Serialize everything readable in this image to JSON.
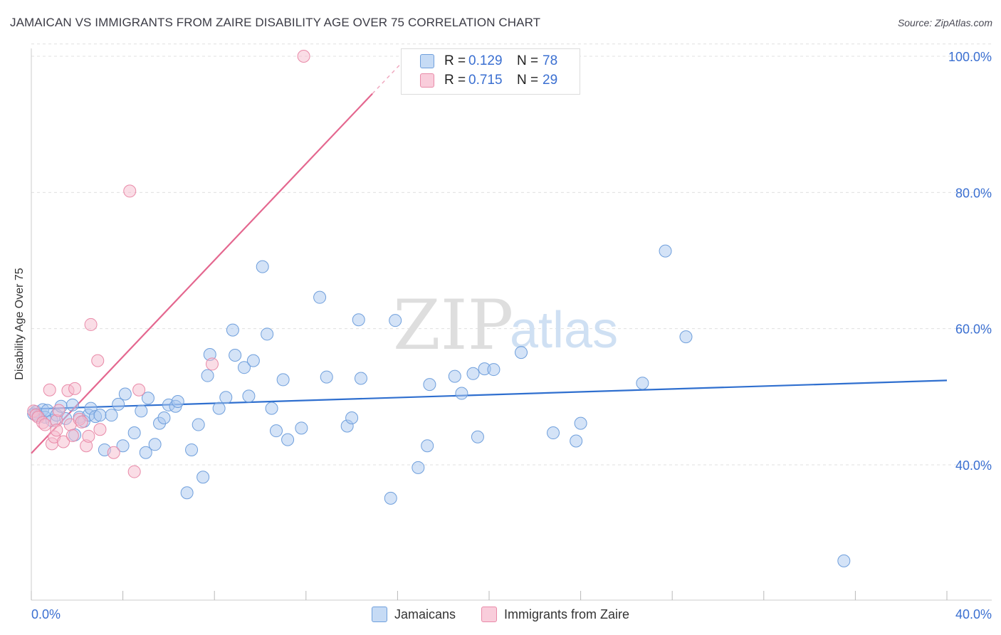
{
  "title": "JAMAICAN VS IMMIGRANTS FROM ZAIRE DISABILITY AGE OVER 75 CORRELATION CHART",
  "source": "Source: ZipAtlas.com",
  "watermark": {
    "zip": "ZIP",
    "atlas": "atlas"
  },
  "colors": {
    "blue_fill": "#a9c8f0",
    "blue_stroke": "#6f9fdc",
    "blue_line": "#2f6fcf",
    "pink_fill": "#f6bccd",
    "pink_stroke": "#e98aa8",
    "pink_line": "#e4678f",
    "tick_text": "#3a6fd1",
    "grid": "#e0e0e0"
  },
  "stats": {
    "series1": {
      "r_label": "R =",
      "r_value": "0.129",
      "n_label": "N =",
      "n_value": "78"
    },
    "series2": {
      "r_label": "R =",
      "r_value": "0.715",
      "n_label": "N =",
      "n_value": "29"
    }
  },
  "chart_data": {
    "type": "scatter",
    "title": "JAMAICAN VS IMMIGRANTS FROM ZAIRE DISABILITY AGE OVER 75 CORRELATION CHART",
    "xlabel": "",
    "ylabel": "Disability Age Over 75",
    "xlim": [
      0,
      40
    ],
    "ylim": [
      20,
      102
    ],
    "x_tick_labels": [
      "0.0%",
      "40.0%"
    ],
    "y_ticks": [
      40,
      60,
      80,
      100
    ],
    "y_tick_labels": [
      "40.0%",
      "60.0%",
      "80.0%",
      "100.0%"
    ],
    "grid": true,
    "legend": [
      "Jamaicans",
      "Immigrants from Zaire"
    ],
    "series": [
      {
        "name": "Jamaicans",
        "trend": {
          "x": [
            0,
            40
          ],
          "y": [
            48.2,
            52.4
          ]
        },
        "points": [
          [
            0.1,
            47.5
          ],
          [
            0.2,
            47.8
          ],
          [
            0.3,
            47.2
          ],
          [
            0.5,
            48.1
          ],
          [
            0.6,
            47.0
          ],
          [
            0.7,
            48.0
          ],
          [
            0.9,
            46.5
          ],
          [
            1.1,
            47.3
          ],
          [
            1.3,
            48.6
          ],
          [
            1.5,
            46.8
          ],
          [
            1.8,
            48.8
          ],
          [
            1.9,
            44.4
          ],
          [
            2.1,
            47.0
          ],
          [
            2.3,
            46.4
          ],
          [
            2.5,
            47.3
          ],
          [
            2.6,
            48.3
          ],
          [
            2.8,
            47.1
          ],
          [
            3.0,
            47.3
          ],
          [
            3.2,
            42.2
          ],
          [
            3.5,
            47.3
          ],
          [
            3.8,
            48.9
          ],
          [
            4.0,
            42.8
          ],
          [
            4.1,
            50.4
          ],
          [
            4.5,
            44.7
          ],
          [
            4.8,
            47.9
          ],
          [
            5.0,
            41.8
          ],
          [
            5.1,
            49.8
          ],
          [
            5.4,
            43.0
          ],
          [
            5.6,
            46.1
          ],
          [
            5.8,
            46.9
          ],
          [
            6.0,
            48.8
          ],
          [
            6.3,
            48.6
          ],
          [
            6.4,
            49.3
          ],
          [
            6.8,
            35.9
          ],
          [
            7.0,
            42.2
          ],
          [
            7.3,
            45.9
          ],
          [
            7.5,
            38.2
          ],
          [
            7.7,
            53.1
          ],
          [
            7.8,
            56.2
          ],
          [
            8.2,
            48.3
          ],
          [
            8.5,
            49.9
          ],
          [
            8.8,
            59.8
          ],
          [
            8.9,
            56.1
          ],
          [
            9.3,
            54.3
          ],
          [
            9.5,
            50.1
          ],
          [
            9.7,
            55.3
          ],
          [
            10.1,
            69.1
          ],
          [
            10.3,
            59.2
          ],
          [
            10.5,
            48.3
          ],
          [
            10.7,
            45.0
          ],
          [
            11.0,
            52.5
          ],
          [
            11.2,
            43.7
          ],
          [
            11.8,
            45.4
          ],
          [
            12.6,
            64.6
          ],
          [
            12.9,
            52.9
          ],
          [
            13.8,
            45.7
          ],
          [
            14.0,
            46.9
          ],
          [
            14.3,
            61.3
          ],
          [
            14.4,
            52.7
          ],
          [
            15.7,
            35.1
          ],
          [
            15.9,
            61.2
          ],
          [
            16.9,
            39.6
          ],
          [
            17.3,
            42.8
          ],
          [
            17.4,
            51.8
          ],
          [
            18.5,
            53.0
          ],
          [
            18.8,
            50.5
          ],
          [
            19.3,
            53.4
          ],
          [
            19.5,
            44.1
          ],
          [
            19.8,
            54.1
          ],
          [
            20.2,
            54.0
          ],
          [
            21.4,
            56.5
          ],
          [
            22.8,
            44.7
          ],
          [
            23.8,
            43.5
          ],
          [
            24.0,
            46.1
          ],
          [
            26.7,
            52.0
          ],
          [
            27.7,
            71.4
          ],
          [
            28.6,
            58.8
          ],
          [
            35.5,
            25.9
          ]
        ]
      },
      {
        "name": "Immigrants from Zaire",
        "trend": {
          "x": [
            0,
            14.9
          ],
          "y": [
            41.7,
            94.5
          ]
        },
        "points": [
          [
            0.1,
            47.9
          ],
          [
            0.2,
            47.3
          ],
          [
            0.3,
            47.0
          ],
          [
            0.5,
            46.2
          ],
          [
            0.6,
            45.9
          ],
          [
            0.8,
            51.0
          ],
          [
            0.9,
            43.1
          ],
          [
            1.0,
            44.1
          ],
          [
            1.1,
            46.5
          ],
          [
            1.1,
            45.1
          ],
          [
            1.2,
            48.0
          ],
          [
            1.4,
            43.4
          ],
          [
            1.6,
            50.9
          ],
          [
            1.7,
            45.9
          ],
          [
            1.8,
            44.3
          ],
          [
            1.9,
            51.2
          ],
          [
            2.1,
            46.7
          ],
          [
            2.2,
            46.3
          ],
          [
            2.4,
            42.8
          ],
          [
            2.5,
            44.2
          ],
          [
            2.6,
            60.6
          ],
          [
            2.9,
            55.3
          ],
          [
            3.0,
            45.2
          ],
          [
            3.6,
            41.8
          ],
          [
            4.3,
            80.2
          ],
          [
            4.5,
            39.0
          ],
          [
            4.7,
            51.0
          ],
          [
            7.9,
            54.8
          ],
          [
            11.9,
            100.0
          ]
        ]
      }
    ]
  }
}
